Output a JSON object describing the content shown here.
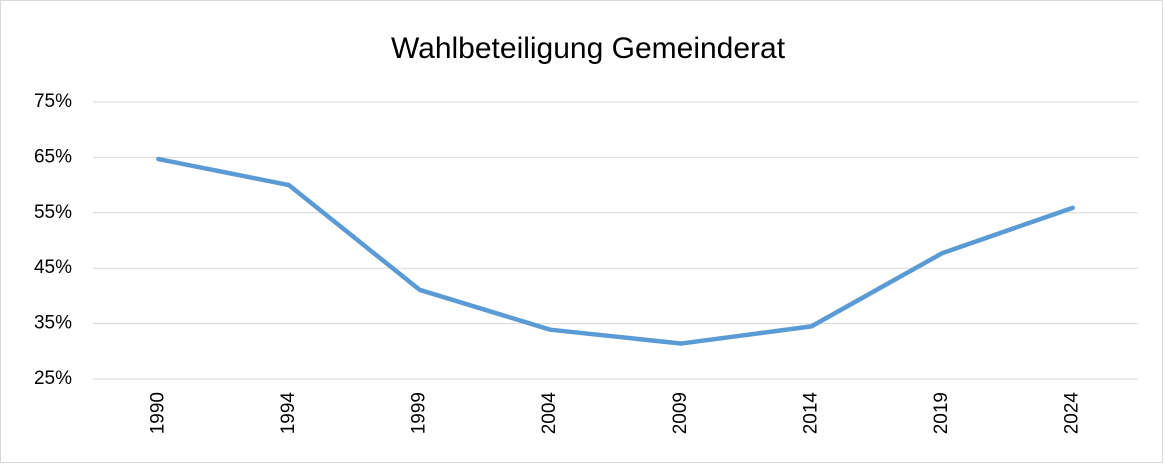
{
  "chart_data": {
    "type": "line",
    "title": "Wahlbeteiligung Gemeinderat",
    "categories": [
      "1990",
      "1994",
      "1999",
      "2004",
      "2009",
      "2014",
      "2019",
      "2024"
    ],
    "series": [
      {
        "name": "Wahlbeteiligung",
        "color": "#5b9bd5",
        "values": [
          64.7,
          60.0,
          41.1,
          33.9,
          31.4,
          34.5,
          47.7,
          55.9
        ]
      }
    ],
    "ylim": [
      25,
      75
    ],
    "yticks": [
      {
        "value": 25,
        "label": "25%"
      },
      {
        "value": 35,
        "label": "35%"
      },
      {
        "value": 45,
        "label": "45%"
      },
      {
        "value": 55,
        "label": "55%"
      },
      {
        "value": 65,
        "label": "65%"
      },
      {
        "value": 75,
        "label": "75%"
      }
    ],
    "grid": true
  }
}
